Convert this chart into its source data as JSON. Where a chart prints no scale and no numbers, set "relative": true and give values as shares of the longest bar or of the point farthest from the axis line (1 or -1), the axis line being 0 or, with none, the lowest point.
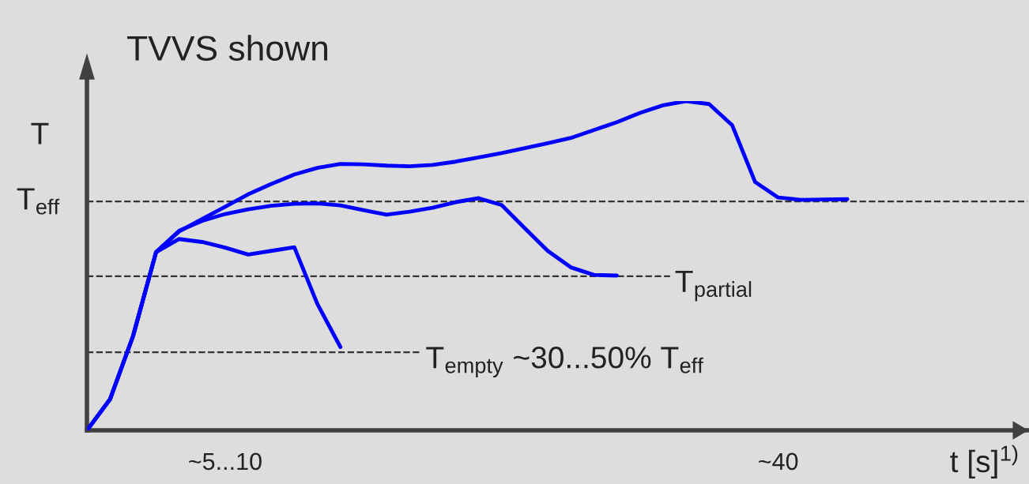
{
  "chart_data": {
    "type": "line",
    "title": "TVVS shown",
    "ylabel": "T",
    "xlabel": "t [s]$^{1)}$",
    "relative": true,
    "categories": [
      null,
      null,
      null,
      null,
      null,
      null,
      "~5...10",
      null,
      null,
      null,
      null,
      null,
      null,
      null,
      null,
      null,
      null,
      null,
      null,
      null,
      null,
      null,
      null,
      null,
      null,
      null,
      null,
      null,
      null,
      null,
      "~40",
      null,
      null,
      null,
      null,
      null,
      null,
      null,
      null,
      null,
      null
    ],
    "line_style": "solid",
    "marker": "none",
    "grid": false,
    "legend": false,
    "series": [
      {
        "color": "#0000ff",
        "values": [
          0,
          0.094,
          0.286,
          0.541,
          0.581,
          0.572,
          0.555,
          0.534,
          0.545,
          0.556,
          0.384,
          0.253,
          null,
          null,
          null,
          null,
          null,
          null,
          null,
          null,
          null,
          null,
          null,
          null,
          null,
          null,
          null,
          null,
          null,
          null,
          null,
          null,
          null,
          null,
          null,
          null,
          null,
          null,
          null,
          null,
          null
        ]
      },
      {
        "color": "#0000ff",
        "values": [
          0,
          0.094,
          0.286,
          0.541,
          0.606,
          0.636,
          0.657,
          0.671,
          0.682,
          0.688,
          0.689,
          0.683,
          0.669,
          0.655,
          0.664,
          0.676,
          0.693,
          0.705,
          0.684,
          0.614,
          0.545,
          0.495,
          0.472,
          0.47,
          null,
          null,
          null,
          null,
          null,
          null,
          null,
          null,
          null,
          null,
          null,
          null,
          null,
          null,
          null,
          null,
          null
        ]
      },
      {
        "color": "#0000ff",
        "values": [
          0,
          0.094,
          0.286,
          0.541,
          0.604,
          0.642,
          0.679,
          0.717,
          0.748,
          0.777,
          0.797,
          0.809,
          0.808,
          0.804,
          0.802,
          0.806,
          0.816,
          0.829,
          0.842,
          0.857,
          0.872,
          0.888,
          0.912,
          0.936,
          0.964,
          0.987,
          1.0,
          0.991,
          0.927,
          0.754,
          0.707,
          0.7,
          0.701,
          0.702,
          null,
          null,
          null,
          null,
          null,
          null,
          null
        ]
      }
    ],
    "ref_lines": [
      {
        "axis": "y",
        "value": 0.695,
        "label": "T$_{eff}$",
        "color": "#333333",
        "line_style": "dashed"
      },
      {
        "axis": "y",
        "value": 0.468,
        "label": "T$_{partial}$",
        "color": "#333333",
        "line_style": "dashed"
      },
      {
        "axis": "y",
        "value": 0.237,
        "label": "T$_{empty}$ ~30...50% T$_{eff}$",
        "color": "#333333",
        "line_style": "dashed"
      }
    ]
  }
}
